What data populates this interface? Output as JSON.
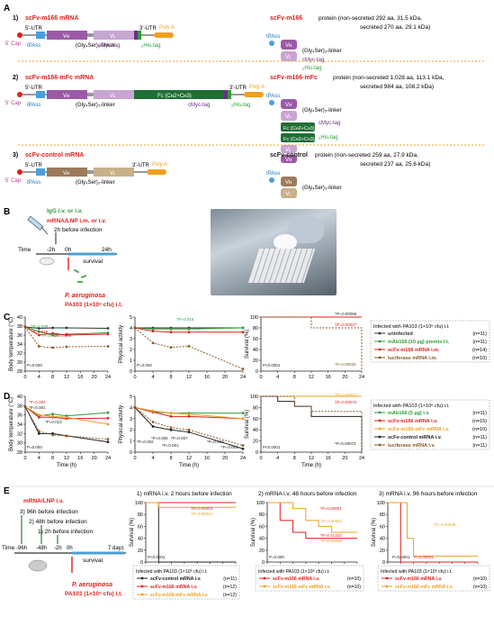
{
  "panels": {
    "A": "A",
    "B": "B",
    "C": "C",
    "D": "D",
    "E": "E"
  },
  "constructs": [
    {
      "num": "1)",
      "title": "scFv-m166 mRNA",
      "protein_title": "scFv-m166",
      "protein_desc": " protein (non-secreted 292 aa, 31.5 kDa,",
      "protein_desc2": "secreted 270 aa, 29.1 kDa)"
    },
    {
      "num": "2)",
      "title": "scFv-m166-mFc mRNA",
      "protein_title": "scFv-m166-mFc",
      "protein_desc": " protein (non-secreted 1,028 aa, 113.1 kDa,",
      "protein_desc2": "secreted 984 aa, 108.2 kDa)"
    },
    {
      "num": "3)",
      "title": "scFv-control mRNA",
      "protein_title": "scFv-control",
      "protein_desc": " protein (non-secreted 259 aa, 27.9 kDa,",
      "protein_desc2": "secreted 237 aa, 25.6 kDa)"
    }
  ],
  "mrna_labels": {
    "utr5": "5'-UTR",
    "utr3": "3'-UTR",
    "polyA": "Poly A",
    "cap": "5' Cap",
    "tpass": "tPAss",
    "vh": "Vʜ",
    "vl": "Vʟ",
    "linker": "(Gly₄Ser)₃-linker",
    "cmyc": "cMyc-tag",
    "his": "₆His-tag",
    "fc": "Fc (Cʜ2+Cʜ3)"
  },
  "panelB": {
    "igg": "IgG i.v. or i.v.",
    "mrna": "mRNA/LNP i.m. or i.v.",
    "before": "2h before infection",
    "time": "Time",
    "tm2": "-2h",
    "t0": "0h",
    "t24": "24h",
    "survival": "survival",
    "pa": "P. aeruginosa",
    "strain": "PA103 (1×10⁶ cfu) i.t."
  },
  "panelC": {
    "ylabel1": "Body temperature (°C)",
    "ylabel2": "Physical activity",
    "ylabel3": "Survival (%)",
    "yticks1": [
      "40",
      "38",
      "36",
      "34",
      "32",
      "30",
      "28"
    ],
    "yticks2": [
      "5",
      "4",
      "3",
      "2",
      "1",
      "0"
    ],
    "yticks3": [
      "100",
      "80",
      "60",
      "40",
      "20",
      "0"
    ],
    "xticks": [
      "0",
      "4",
      "8",
      "12",
      "16",
      "20",
      "24"
    ],
    "pvals": [
      "†P=0.008",
      "†P=0.016",
      "†P=0.001",
      "‡P=0.006",
      "P=0.000",
      "P=0.000",
      "†P=0.016",
      "P<0.0001",
      "†P=0.00055",
      "‡P=0.00037",
      "*P=0.00025"
    ],
    "legend_title": "Infected with PA103 (1×10⁶ cfu) i.t.",
    "legend": [
      {
        "label": "uninfected",
        "n": "(n=11)",
        "color": "#333333"
      },
      {
        "label": "mAb166 (10 µg) premix i.t.",
        "n": "(n=11)",
        "color": "#2e9c3a"
      },
      {
        "label": "scFv-m166 mRNA i.m.",
        "n": "(n=14)",
        "color": "#e0201c"
      },
      {
        "label": "luciferase mRNA i.m.",
        "n": "(n=10)",
        "color": "#8a5a2b"
      }
    ]
  },
  "panelD": {
    "xlabel": "Time (h)",
    "pvals": [
      "*P=0.004",
      "*P=0.001",
      "*P=0.013",
      "P=0.000",
      "*P=0.002",
      "*P=0.005",
      "*P=0.007",
      "*P=0.001",
      "*P=0.003",
      "*P=0.001",
      "P<0.0001",
      "†P=0.00072",
      "‡P=0.00072",
      "*P=0.00072"
    ],
    "legend_title": "Infected with PA103 (1×10⁶ cfu) i.t.",
    "legend": [
      {
        "label": "mAb166 (5 µg) i.v.",
        "n": "(n=11)",
        "color": "#2e9c3a"
      },
      {
        "label": "scFv-m166 mRNA i.v.",
        "n": "(n=15)",
        "color": "#e0201c"
      },
      {
        "label": "scFv-m166-mFc mRNA i.v.",
        "n": "(n=10)",
        "color": "#f0a020"
      },
      {
        "label": "scFv-control mRNA i.v.",
        "n": "(n=11)",
        "color": "#222222"
      },
      {
        "label": "luciferase mRNA i.v.",
        "n": "(n=11)",
        "color": "#8a5a2b"
      }
    ]
  },
  "panelE": {
    "mrna": "mRNA/LNP i.v.",
    "s3": "3) 96h before infection",
    "s2": "2) 48h before infection",
    "s1": "1) 2h before infection",
    "time": "Time",
    "t96": "-96h",
    "t48": "-48h",
    "t2": "-2h",
    "t0": "0h",
    "t7": "7 days",
    "survival": "survival",
    "pa": "P. aeruginosa",
    "strain": "PA103 (1×10⁶ cfu) i.t.",
    "titles": [
      "1) mRNA i.v. 2 hours before infection",
      "2) mRNA i.v. 48 hours before infection",
      "3) mRNA i.v. 96 hours before infection"
    ],
    "xlabel": "day after infection",
    "ylabel": "Survival (%)",
    "xticks": [
      "0",
      "1",
      "2",
      "3",
      "4",
      "5",
      "6",
      "7"
    ],
    "yticks": [
      "100",
      "80",
      "60",
      "40",
      "20",
      "0"
    ],
    "pvals1": [
      "‡P=0.00001",
      "†P=0.00001",
      "P<0.0001"
    ],
    "pvals2": [
      "*P=0.00001",
      "‡P=0.00001",
      "*P=0.41323",
      "†P=0.00380",
      "P=0.000"
    ],
    "pvals3": [
      "‡P=0.00038",
      "P=0.0001",
      "P=0.00001"
    ],
    "legend_title": "Infected with PA103 (1×10⁶ cfu) i.t.",
    "legend1": [
      {
        "label": "scFv-control mRNA i.v.",
        "n": "(n=11)",
        "color": "#222222"
      },
      {
        "label": "scFv-m166 mRNA i.v.",
        "n": "(n=12)",
        "color": "#e0201c"
      },
      {
        "label": "scFv-m166-mFc mRNA i.v.",
        "n": "(n=12)",
        "color": "#f0a020"
      }
    ],
    "legend2": [
      {
        "label": "scFv-m166 mRNA i.v.",
        "n": "(n=10)",
        "color": "#e0201c"
      },
      {
        "label": "scFv-m166-mFc mRNA i.v.",
        "n": "(n=10)",
        "color": "#f0a020"
      }
    ],
    "legend3": [
      {
        "label": "scFv-m166 mRNA i.v.",
        "n": "(n=10)",
        "color": "#e0201c"
      },
      {
        "label": "scFv-m166-mFc mRNA i.v.",
        "n": "(n=10)",
        "color": "#f0a020"
      }
    ]
  },
  "chart_data": [
    {
      "type": "line",
      "panel": "C-temperature",
      "x": [
        0,
        4,
        8,
        12,
        24
      ],
      "ylim": [
        28,
        40
      ],
      "xlim": [
        0,
        24
      ],
      "series": [
        {
          "name": "uninfected",
          "values": [
            37.8,
            37.5,
            37.6,
            37.6,
            37.5
          ]
        },
        {
          "name": "mAb166 (10 µg) premix i.t.",
          "values": [
            37.8,
            36.8,
            36.0,
            36.2,
            36.5
          ]
        },
        {
          "name": "scFv-m166 mRNA i.m.",
          "values": [
            37.8,
            36.0,
            36.4,
            36.0,
            36.2
          ]
        },
        {
          "name": "luciferase mRNA i.m.",
          "values": [
            37.8,
            33.5,
            33.2,
            33.4,
            33.5
          ]
        }
      ]
    },
    {
      "type": "line",
      "panel": "C-activity",
      "x": [
        0,
        4,
        8,
        12,
        24
      ],
      "ylim": [
        0,
        5
      ],
      "xlim": [
        0,
        24
      ],
      "series": [
        {
          "name": "uninfected",
          "values": [
            4,
            4,
            4,
            4,
            4
          ]
        },
        {
          "name": "mAb166 (10 µg) premix i.t.",
          "values": [
            4,
            3.9,
            3.9,
            3.9,
            4
          ]
        },
        {
          "name": "scFv-m166 mRNA i.m.",
          "values": [
            4,
            3.7,
            3.6,
            3.6,
            3.6
          ]
        },
        {
          "name": "luciferase mRNA i.m.",
          "values": [
            4,
            2.6,
            2.2,
            2.3,
            0.2
          ]
        }
      ]
    },
    {
      "type": "line",
      "panel": "C-survival",
      "x": [
        0,
        4,
        8,
        12,
        24
      ],
      "ylim": [
        0,
        100
      ],
      "xlim": [
        0,
        24
      ],
      "series": [
        {
          "name": "uninfected",
          "values": [
            100,
            100,
            100,
            100,
            100
          ]
        },
        {
          "name": "mAb166 (10 µg) premix i.t.",
          "values": [
            100,
            100,
            100,
            100,
            100
          ]
        },
        {
          "name": "scFv-m166 mRNA i.m.",
          "values": [
            100,
            100,
            100,
            100,
            100
          ]
        },
        {
          "name": "luciferase mRNA i.m.",
          "values": [
            100,
            100,
            100,
            80,
            0
          ]
        }
      ]
    },
    {
      "type": "line",
      "panel": "D-temperature",
      "x": [
        0,
        4,
        8,
        12,
        24
      ],
      "ylim": [
        28,
        40
      ],
      "xlim": [
        0,
        24
      ],
      "series": [
        {
          "name": "mAb166 (5 µg) i.v.",
          "values": [
            37.8,
            35.8,
            36.2,
            35.8,
            36.5
          ]
        },
        {
          "name": "scFv-m166 mRNA i.v.",
          "values": [
            37.8,
            35.5,
            35.5,
            35.2,
            35.3
          ]
        },
        {
          "name": "scFv-m166-mFc mRNA i.v.",
          "values": [
            37.8,
            36.0,
            35.7,
            35.5,
            34.0
          ]
        },
        {
          "name": "scFv-control mRNA i.v.",
          "values": [
            37.8,
            32.0,
            32.0,
            31.5,
            30.2
          ]
        },
        {
          "name": "luciferase mRNA i.v.",
          "values": [
            37.8,
            32.5,
            31.7,
            31.5,
            30.8
          ]
        }
      ]
    },
    {
      "type": "line",
      "panel": "D-activity",
      "x": [
        0,
        4,
        8,
        12,
        24
      ],
      "ylim": [
        0,
        5
      ],
      "xlim": [
        0,
        24
      ],
      "series": [
        {
          "name": "mAb166 (5 µg) i.v.",
          "values": [
            4,
            3.6,
            3.5,
            3.5,
            3.5
          ]
        },
        {
          "name": "scFv-m166 mRNA i.v.",
          "values": [
            4,
            3.6,
            3.2,
            3.2,
            3.0
          ]
        },
        {
          "name": "scFv-m166-mFc mRNA i.v.",
          "values": [
            4,
            3.7,
            3.5,
            3.4,
            3.0
          ]
        },
        {
          "name": "scFv-control mRNA i.v.",
          "values": [
            4,
            2.3,
            2.0,
            1.8,
            0.3
          ]
        },
        {
          "name": "luciferase mRNA i.v.",
          "values": [
            4,
            2.7,
            2.2,
            2.0,
            0.6
          ]
        }
      ]
    },
    {
      "type": "line",
      "panel": "D-survival",
      "x": [
        0,
        4,
        8,
        12,
        24
      ],
      "ylim": [
        0,
        100
      ],
      "xlim": [
        0,
        24
      ],
      "series": [
        {
          "name": "mAb166 (5 µg) i.v.",
          "values": [
            100,
            100,
            100,
            100,
            100
          ]
        },
        {
          "name": "scFv-m166 mRNA i.v.",
          "values": [
            100,
            100,
            100,
            100,
            100
          ]
        },
        {
          "name": "scFv-m166-mFc mRNA i.v.",
          "values": [
            100,
            100,
            100,
            100,
            100
          ]
        },
        {
          "name": "scFv-control mRNA i.v.",
          "values": [
            100,
            91,
            82,
            64,
            0
          ]
        },
        {
          "name": "luciferase mRNA i.v.",
          "values": [
            100,
            100,
            82,
            73,
            0
          ]
        }
      ]
    },
    {
      "type": "line",
      "panel": "E1",
      "xlim": [
        0,
        7
      ],
      "ylim": [
        0,
        100
      ],
      "series": [
        {
          "name": "scFv-control mRNA i.v.",
          "x": [
            0,
            1,
            1,
            7
          ],
          "values": [
            100,
            100,
            0,
            0
          ]
        },
        {
          "name": "scFv-m166 mRNA i.v.",
          "x": [
            0,
            7
          ],
          "values": [
            100,
            100
          ]
        },
        {
          "name": "scFv-m166-mFc mRNA i.v.",
          "x": [
            0,
            1,
            7
          ],
          "values": [
            100,
            92,
            92
          ]
        }
      ]
    },
    {
      "type": "line",
      "panel": "E2",
      "xlim": [
        0,
        7
      ],
      "ylim": [
        0,
        100
      ],
      "series": [
        {
          "name": "scFv-m166 mRNA i.v.",
          "x": [
            0,
            1,
            2,
            3,
            7
          ],
          "values": [
            100,
            70,
            50,
            40,
            40
          ]
        },
        {
          "name": "scFv-m166-mFc mRNA i.v.",
          "x": [
            0,
            1,
            2,
            3,
            4,
            5,
            7
          ],
          "values": [
            100,
            100,
            90,
            70,
            60,
            50,
            50
          ]
        }
      ]
    },
    {
      "type": "line",
      "panel": "E3",
      "xlim": [
        0,
        7
      ],
      "ylim": [
        0,
        100
      ],
      "series": [
        {
          "name": "scFv-m166 mRNA i.v.",
          "x": [
            0,
            1,
            1,
            7
          ],
          "values": [
            100,
            100,
            0,
            0
          ]
        },
        {
          "name": "scFv-m166-mFc mRNA i.v.",
          "x": [
            0,
            1,
            1.5,
            2,
            7
          ],
          "values": [
            100,
            100,
            40,
            10,
            10
          ]
        }
      ]
    }
  ]
}
